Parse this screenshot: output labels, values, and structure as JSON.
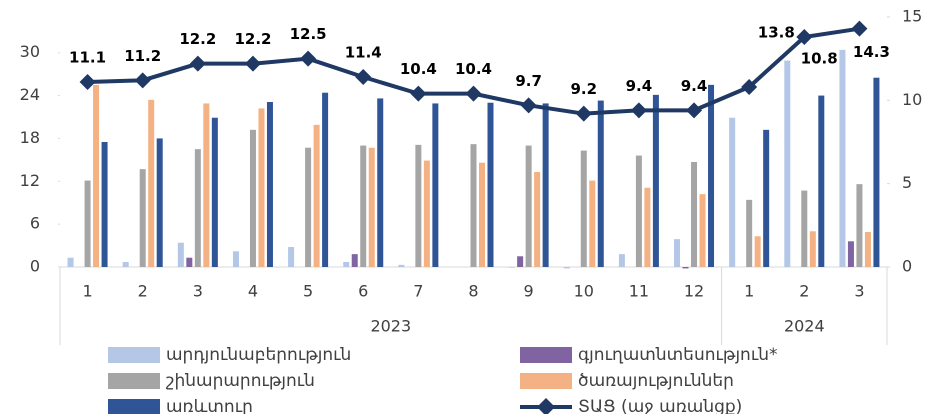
{
  "chart_data": {
    "type": "bar",
    "category_groups": [
      {
        "name": "2023",
        "categories": [
          "1",
          "2",
          "3",
          "4",
          "5",
          "6",
          "7",
          "8",
          "9",
          "10",
          "11",
          "12"
        ]
      },
      {
        "name": "2024",
        "categories": [
          "1",
          "2",
          "3"
        ]
      }
    ],
    "ylim": [
      0,
      35
    ],
    "yticks": [
      0,
      6,
      12,
      18,
      24,
      30
    ],
    "y2lim": [
      0,
      15
    ],
    "y2ticks": [
      0,
      5,
      10,
      15
    ],
    "series": [
      {
        "name": "արդյունաբերություն",
        "color": "#b4c7e7",
        "type": "bar",
        "values": [
          1.3,
          0.7,
          3.4,
          2.2,
          2.8,
          0.7,
          0.3,
          0,
          -0.1,
          -0.2,
          1.8,
          3.9,
          20.9,
          28.9,
          30.4
        ]
      },
      {
        "name": "գյուղատնտեսություն*",
        "color": "#8064a2",
        "type": "bar",
        "values": [
          0,
          0,
          1.3,
          0,
          0,
          1.8,
          0,
          0,
          1.5,
          0,
          0,
          -0.2,
          0,
          0,
          3.6
        ]
      },
      {
        "name": "շինարարություն",
        "color": "#a5a5a5",
        "type": "bar",
        "values": [
          12.1,
          13.7,
          16.5,
          19.2,
          16.7,
          17.0,
          17.1,
          17.2,
          17.0,
          16.3,
          15.6,
          14.7,
          9.4,
          10.7,
          11.6
        ]
      },
      {
        "name": "ծառայություններ",
        "color": "#f4b183",
        "type": "bar",
        "values": [
          25.5,
          23.4,
          22.9,
          22.2,
          19.9,
          16.7,
          14.9,
          14.6,
          13.3,
          12.1,
          11.1,
          10.2,
          4.3,
          5.0,
          4.9
        ]
      },
      {
        "name": "առևտուր",
        "color": "#2f5597",
        "type": "bar",
        "values": [
          17.5,
          18.0,
          20.9,
          23.1,
          24.4,
          23.6,
          22.9,
          23.0,
          22.9,
          23.3,
          24.1,
          25.5,
          19.2,
          24.0,
          26.5
        ]
      },
      {
        "name": "ՏԱՑ (աջ առանցք)",
        "color": "#1f3864",
        "type": "line",
        "axis": "y2",
        "values": [
          11.1,
          11.2,
          12.2,
          12.2,
          12.5,
          11.4,
          10.4,
          10.4,
          9.7,
          9.2,
          9.4,
          9.4,
          10.8,
          13.8,
          14.3
        ]
      }
    ]
  }
}
